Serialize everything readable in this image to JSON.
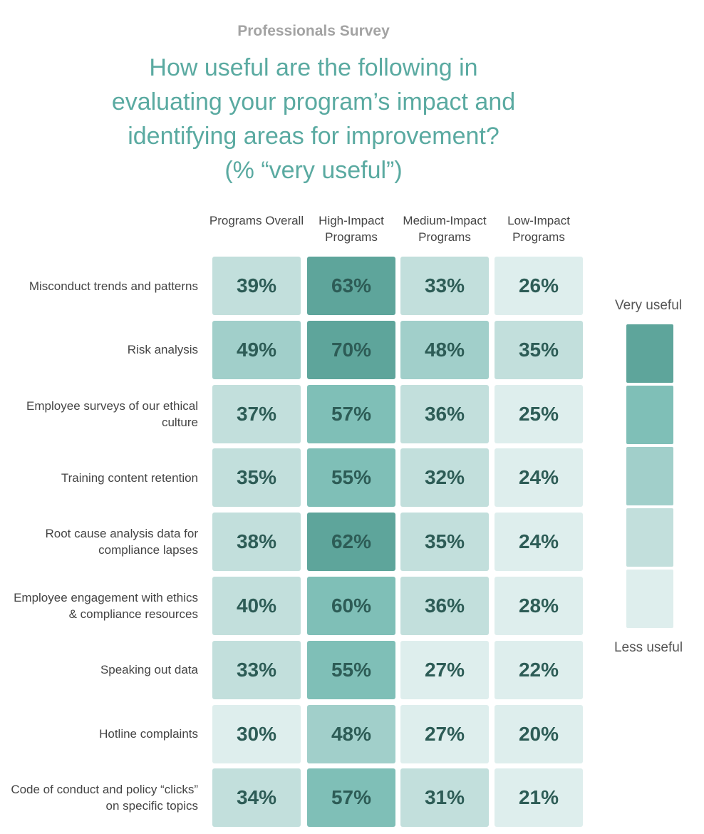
{
  "chart_data": {
    "type": "heatmap",
    "supertitle": "Professionals Survey",
    "title": [
      "How useful are the following in",
      "evaluating your program’s impact and",
      "identifying areas for improvement?",
      "(% “very useful”)"
    ],
    "columns": [
      "Programs Overall",
      "High-Impact Programs",
      "Medium-Impact Programs",
      "Low-Impact Programs"
    ],
    "rows": [
      "Misconduct trends and patterns",
      "Risk analysis",
      "Employee surveys of our ethical culture",
      "Training content retention",
      "Root cause analysis data for compliance lapses",
      "Employee engagement with ethics & compliance resources",
      "Speaking out data",
      "Hotline complaints",
      "Code of conduct and policy “clicks” on specific topics"
    ],
    "values": [
      [
        39,
        63,
        33,
        26
      ],
      [
        49,
        70,
        48,
        35
      ],
      [
        37,
        57,
        36,
        25
      ],
      [
        35,
        55,
        32,
        24
      ],
      [
        38,
        62,
        35,
        24
      ],
      [
        40,
        60,
        36,
        28
      ],
      [
        33,
        55,
        27,
        22
      ],
      [
        30,
        48,
        27,
        20
      ],
      [
        34,
        57,
        31,
        21
      ]
    ],
    "value_labels": [
      [
        "39%",
        "63%",
        "33%",
        "26%"
      ],
      [
        "49%",
        "70%",
        "48%",
        "35%"
      ],
      [
        "37%",
        "57%",
        "36%",
        "25%"
      ],
      [
        "35%",
        "55%",
        "32%",
        "24%"
      ],
      [
        "38%",
        "62%",
        "35%",
        "24%"
      ],
      [
        "40%",
        "60%",
        "36%",
        "28%"
      ],
      [
        "33%",
        "55%",
        "27%",
        "22%"
      ],
      [
        "30%",
        "48%",
        "27%",
        "20%"
      ],
      [
        "34%",
        "57%",
        "31%",
        "21%"
      ]
    ],
    "colors": [
      [
        "#c2dfdc",
        "#5ea59b",
        "#c2dfdc",
        "#deeeed"
      ],
      [
        "#a1cfca",
        "#5ea59b",
        "#a1cfca",
        "#c2dfdc"
      ],
      [
        "#c2dfdc",
        "#7fbfb7",
        "#c2dfdc",
        "#deeeed"
      ],
      [
        "#c2dfdc",
        "#7fbfb7",
        "#c2dfdc",
        "#deeeed"
      ],
      [
        "#c2dfdc",
        "#5ea59b",
        "#c2dfdc",
        "#deeeed"
      ],
      [
        "#c2dfdc",
        "#7fbfb7",
        "#c2dfdc",
        "#deeeed"
      ],
      [
        "#c2dfdc",
        "#7fbfb7",
        "#deeeed",
        "#deeeed"
      ],
      [
        "#deeeed",
        "#a1cfca",
        "#deeeed",
        "#deeeed"
      ],
      [
        "#c2dfdc",
        "#7fbfb7",
        "#c2dfdc",
        "#deeeed"
      ]
    ],
    "legend": {
      "top_label": "Very useful",
      "bottom_label": "Less useful",
      "colors": [
        "#5ea59b",
        "#7fbfb7",
        "#a1cfca",
        "#c2dfdc",
        "#deeeed"
      ]
    }
  }
}
